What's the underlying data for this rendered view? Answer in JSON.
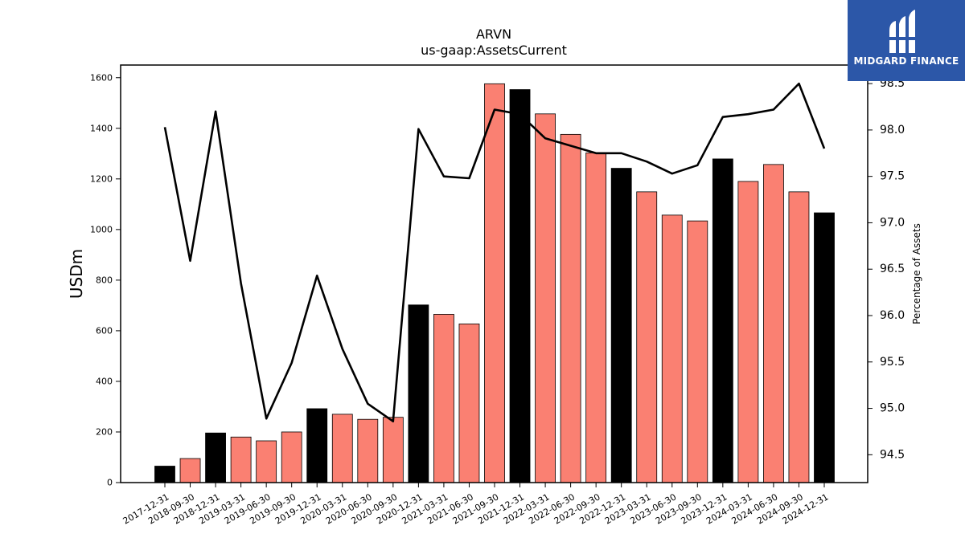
{
  "chart_data": {
    "type": "bar",
    "title": "ARVN",
    "subtitle": "us-gaap:AssetsCurrent",
    "ylabel": "USDm",
    "y2label": "Percentage of Assets",
    "ylim": [
      0,
      1650
    ],
    "y2lim": [
      94.2,
      98.7
    ],
    "yticks": [
      0,
      200,
      400,
      600,
      800,
      1000,
      1200,
      1400,
      1600
    ],
    "y2ticks": [
      "94.5",
      "95.0",
      "95.5",
      "96.0",
      "96.5",
      "97.0",
      "97.5",
      "98.0",
      "98.5"
    ],
    "grid": false,
    "colors": {
      "annual": "#000000",
      "quarter": "#fa8072",
      "line": "#000000"
    },
    "categories": [
      "2017-12-31",
      "2018-09-30",
      "2018-12-31",
      "2019-03-31",
      "2019-06-30",
      "2019-09-30",
      "2019-12-31",
      "2020-03-31",
      "2020-06-30",
      "2020-09-30",
      "2020-12-31",
      "2021-03-31",
      "2021-06-30",
      "2021-09-30",
      "2021-12-31",
      "2022-03-31",
      "2022-06-30",
      "2022-09-30",
      "2022-12-31",
      "2023-03-31",
      "2023-06-30",
      "2023-09-30",
      "2023-12-31",
      "2024-03-31",
      "2024-06-30",
      "2024-09-30",
      "2024-12-31"
    ],
    "series": [
      {
        "type": "bar",
        "values": [
          65,
          95,
          196,
          180,
          165,
          200,
          292,
          270,
          250,
          258,
          702,
          665,
          627,
          1576,
          1553,
          1457,
          1376,
          1303,
          1242,
          1149,
          1057,
          1034,
          1279,
          1190,
          1257,
          1149,
          1066
        ],
        "annual": [
          true,
          false,
          true,
          false,
          false,
          false,
          true,
          false,
          false,
          false,
          true,
          false,
          false,
          false,
          true,
          false,
          false,
          false,
          true,
          false,
          false,
          false,
          true,
          false,
          false,
          false,
          true
        ]
      },
      {
        "type": "line",
        "axis": "right",
        "values": [
          98.03,
          96.59,
          98.2,
          96.35,
          94.89,
          95.49,
          96.43,
          95.64,
          95.05,
          94.86,
          98.01,
          97.5,
          97.48,
          98.22,
          98.17,
          97.91,
          97.83,
          97.75,
          97.75,
          97.66,
          97.53,
          97.62,
          98.14,
          98.17,
          98.22,
          98.5,
          97.8
        ]
      }
    ]
  },
  "logo": {
    "text": "MIDGARD FINANCE"
  }
}
